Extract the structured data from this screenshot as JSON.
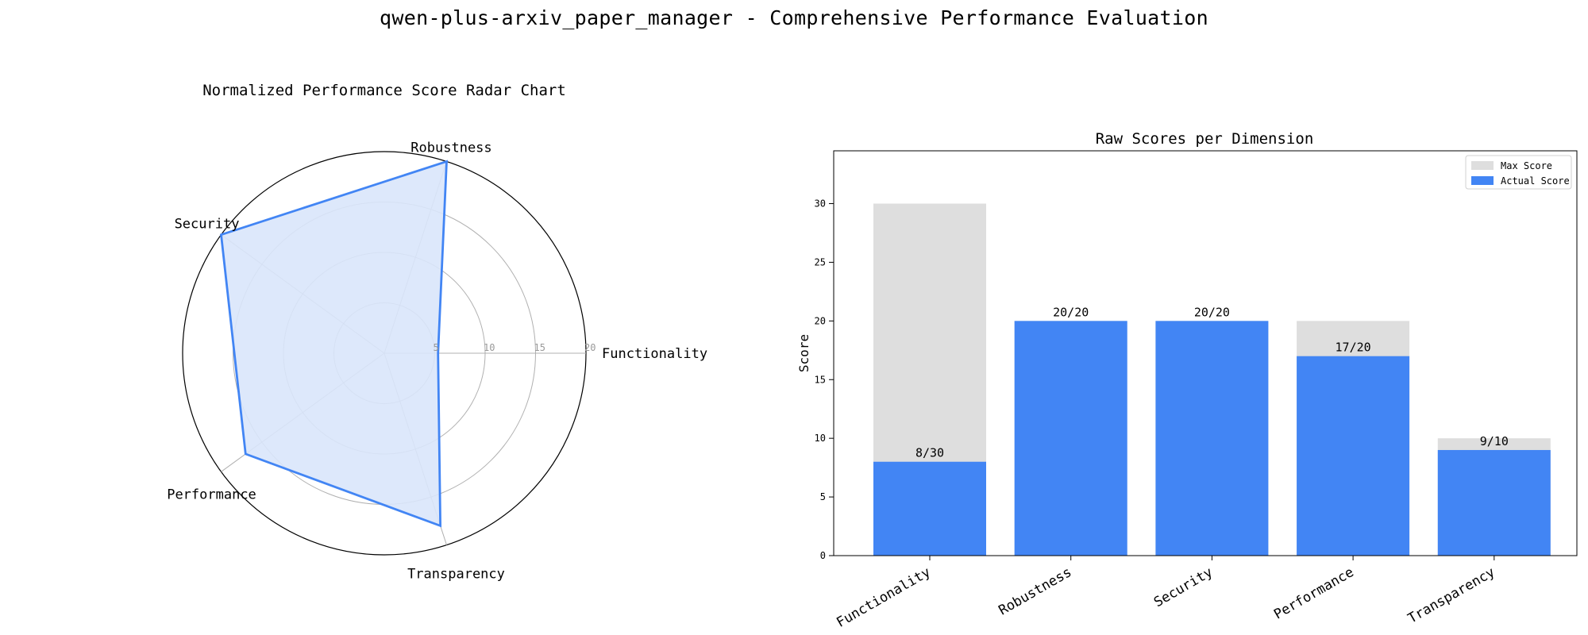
{
  "suptitle": "qwen-plus-arxiv_paper_manager - Comprehensive Performance Evaluation",
  "colors": {
    "actual": "#4285f4",
    "max": "#dedede",
    "radar_fill": "#d9e6fb",
    "grid": "#b0b0b0",
    "text": "#000000"
  },
  "chart_data": [
    {
      "type": "radar",
      "title": "Normalized Performance Score Radar Chart",
      "axes": [
        "Functionality",
        "Robustness",
        "Security",
        "Performance",
        "Transparency"
      ],
      "values": [
        5.33,
        20,
        20,
        17,
        18
      ],
      "rmax": 20,
      "rticks": [
        5,
        10,
        15,
        20
      ],
      "grid": true
    },
    {
      "type": "bar",
      "title": "Raw Scores per Dimension",
      "categories": [
        "Functionality",
        "Robustness",
        "Security",
        "Performance",
        "Transparency"
      ],
      "series": [
        {
          "name": "Max Score",
          "values": [
            30,
            20,
            20,
            20,
            10
          ]
        },
        {
          "name": "Actual Score",
          "values": [
            8,
            20,
            20,
            17,
            9
          ]
        }
      ],
      "data_labels": [
        "8/30",
        "20/20",
        "20/20",
        "17/20",
        "9/10"
      ],
      "ylabel": "Score",
      "ylim": [
        0,
        34.5
      ],
      "yticks": [
        0,
        5,
        10,
        15,
        20,
        25,
        30
      ],
      "legend": "top-right",
      "grid": false
    }
  ]
}
